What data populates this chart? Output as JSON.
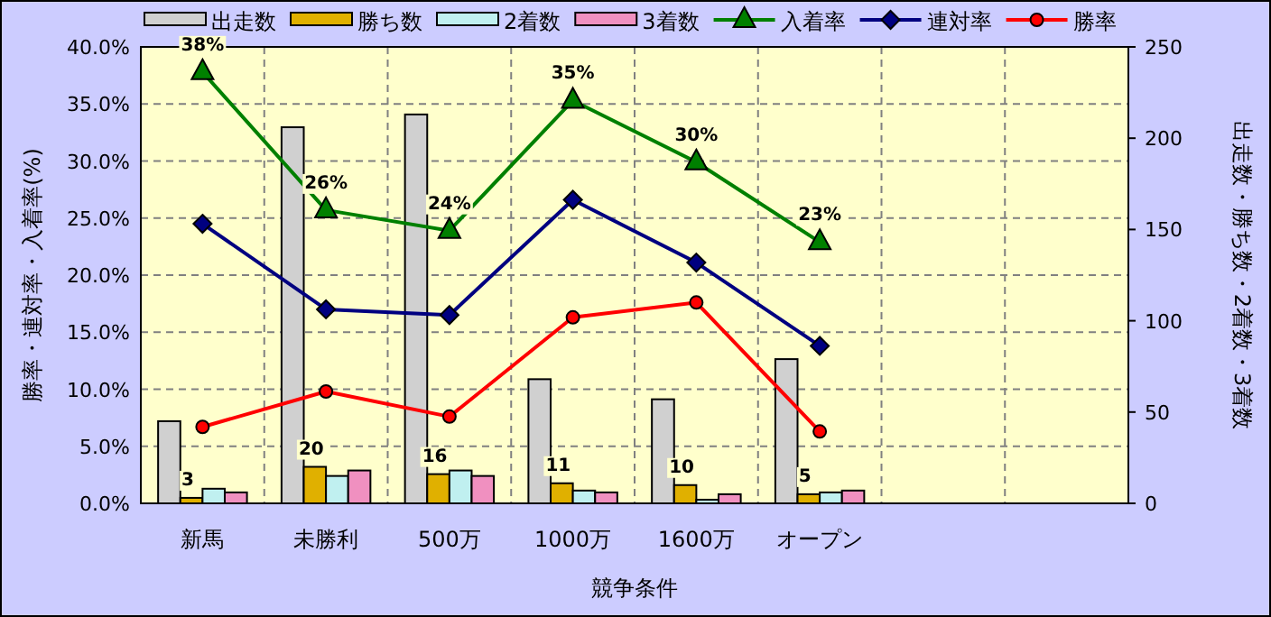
{
  "chart_data": {
    "type": "bar",
    "xlabel": "競争条件",
    "ylabel": "勝率・連対率・入着率(%)",
    "y2label": "出走数・勝ち数・2着数・3着数",
    "categories": [
      "新馬",
      "未勝利",
      "500万",
      "1000万",
      "1600万",
      "オープン",
      null,
      null
    ],
    "series": [
      {
        "name": "出走数",
        "axis": "y2",
        "color": "#d0d0d0",
        "values": [
          45,
          206,
          213,
          68,
          57,
          79,
          null,
          null
        ]
      },
      {
        "name": "勝ち数",
        "axis": "y2",
        "color": "#e0b000",
        "values": [
          3,
          20,
          16,
          11,
          10,
          5,
          null,
          null
        ],
        "value_labels": [
          "3",
          "20",
          "16",
          "11",
          "10",
          "5",
          null,
          null
        ]
      },
      {
        "name": "2着数",
        "axis": "y2",
        "color": "#c0f0f0",
        "values": [
          8,
          15,
          18,
          7,
          2,
          6,
          null,
          null
        ]
      },
      {
        "name": "3着数",
        "axis": "y2",
        "color": "#f090c0",
        "values": [
          6,
          18,
          15,
          6,
          5,
          7,
          null,
          null
        ]
      },
      {
        "name": "入着率",
        "type": "line",
        "axis": "y",
        "color": "#008000",
        "marker": "triangle",
        "values": [
          37.8,
          25.7,
          23.9,
          35.3,
          29.9,
          22.9,
          null,
          null
        ],
        "value_labels": [
          "38%",
          "26%",
          "24%",
          "35%",
          "30%",
          "23%",
          null,
          null
        ]
      },
      {
        "name": "連対率",
        "type": "line",
        "axis": "y",
        "color": "#000080",
        "marker": "diamond",
        "values": [
          24.5,
          17.0,
          16.5,
          26.6,
          21.1,
          13.8,
          null,
          null
        ]
      },
      {
        "name": "勝率",
        "type": "line",
        "axis": "y",
        "color": "#ff0000",
        "marker": "circle",
        "values": [
          6.7,
          9.8,
          7.6,
          16.3,
          17.6,
          6.3,
          null,
          null
        ]
      }
    ],
    "ylim": [
      0,
      40
    ],
    "yticks": [
      {
        "value": 0,
        "label": "0.0%"
      },
      {
        "value": 5,
        "label": "5.0%"
      },
      {
        "value": 10,
        "label": "10.0%"
      },
      {
        "value": 15,
        "label": "15.0%"
      },
      {
        "value": 20,
        "label": "20.0%"
      },
      {
        "value": 25,
        "label": "25.0%"
      },
      {
        "value": 30,
        "label": "30.0%"
      },
      {
        "value": 35,
        "label": "35.0%"
      },
      {
        "value": 40,
        "label": "40.0%"
      }
    ],
    "y2lim": [
      0,
      250
    ],
    "y2ticks": [
      0,
      50,
      100,
      150,
      200,
      250
    ],
    "grid": true,
    "legend": "top"
  }
}
